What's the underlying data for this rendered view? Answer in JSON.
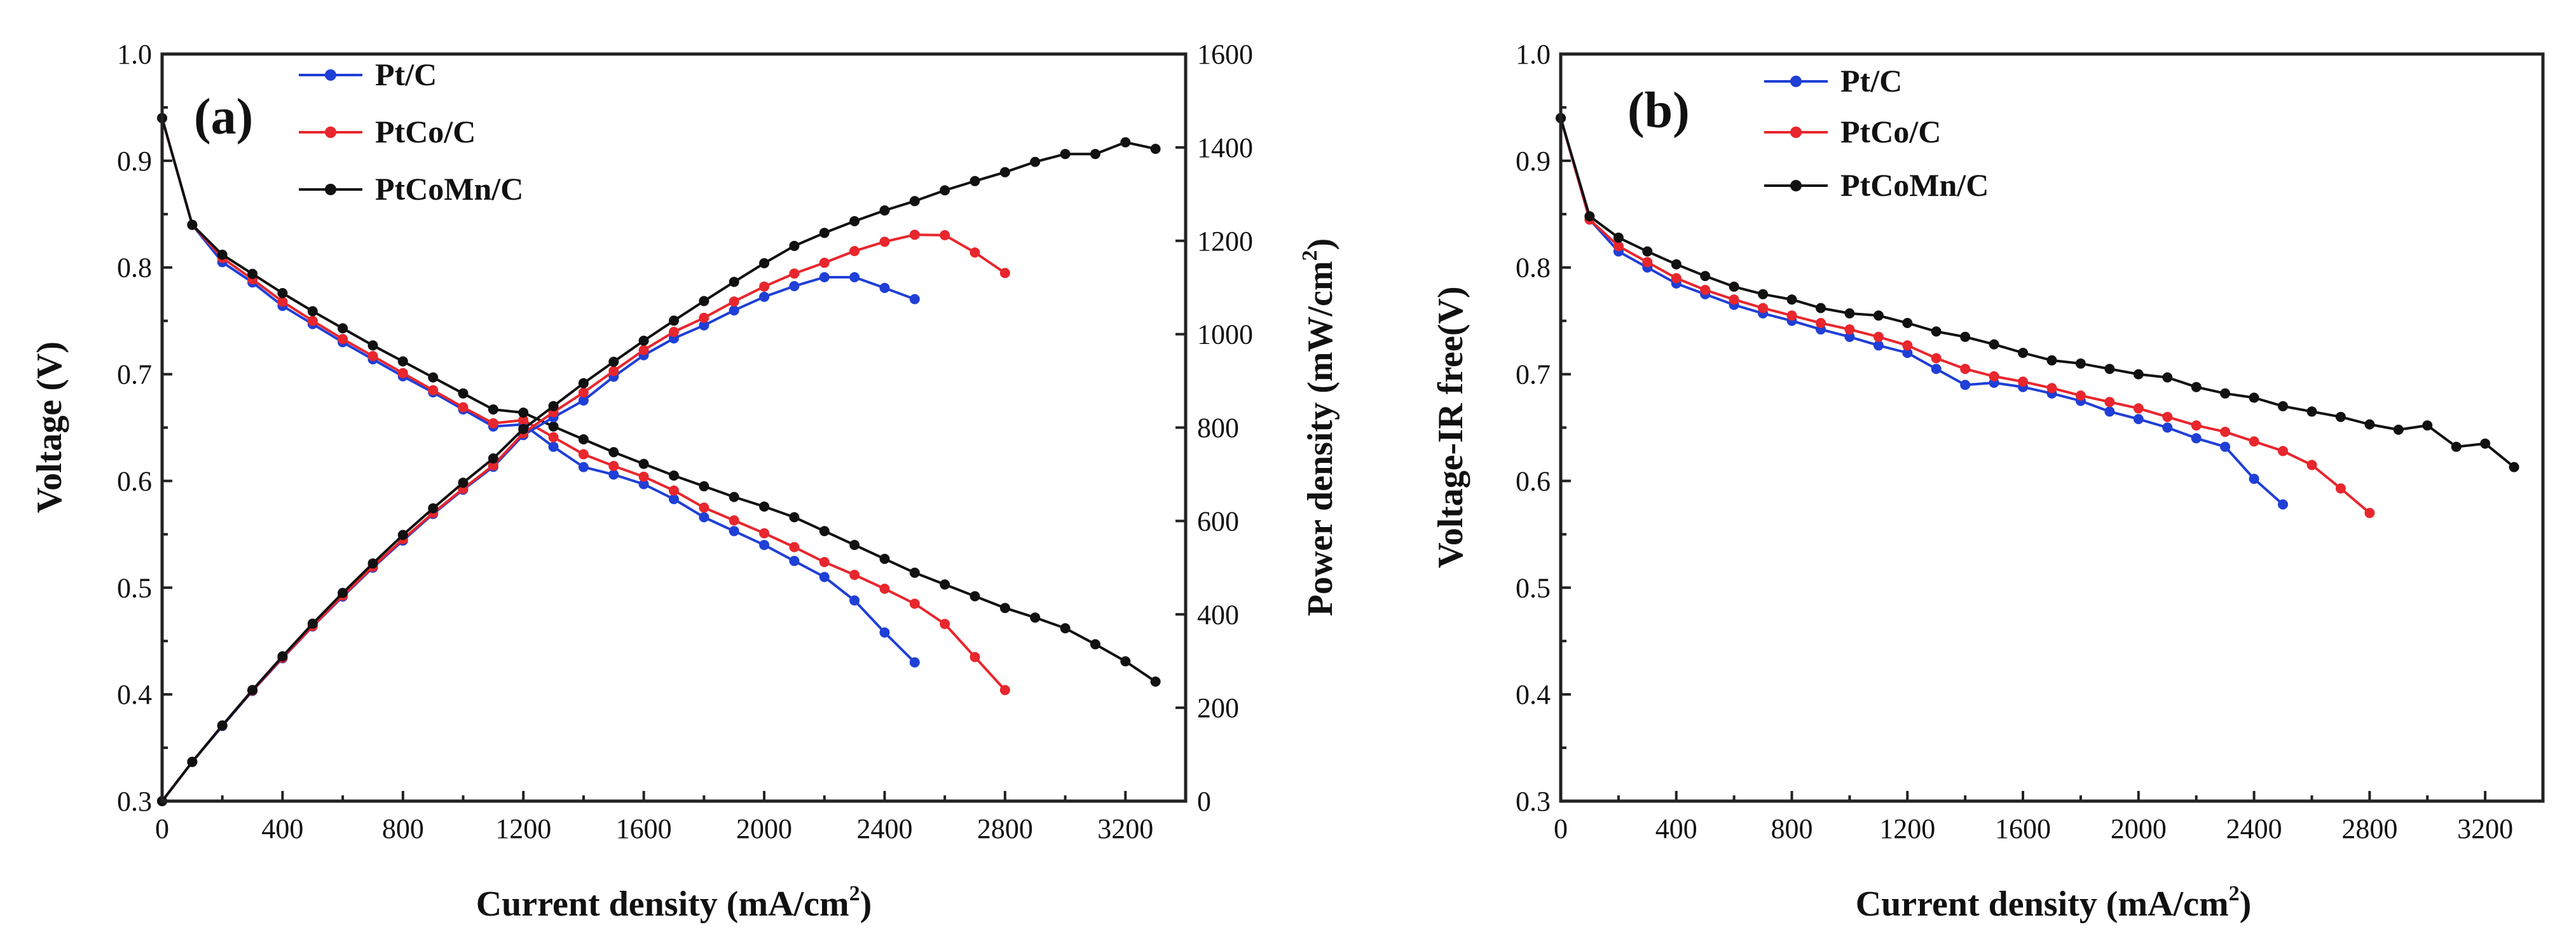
{
  "chart_data": [
    {
      "type": "line",
      "panel_label": "(a)",
      "xlabel": "Current density (mA/cm",
      "xlabel_sup": "2",
      "xlabel_end": ")",
      "ylabel": "Voltage (V)",
      "y2label": "Power density (mW/cm",
      "y2label_sup": "2",
      "y2label_end": ")",
      "xlim": [
        0,
        3400
      ],
      "ylim": [
        0.3,
        1.0
      ],
      "y2lim": [
        0,
        1600
      ],
      "xticks": [
        "0",
        "400",
        "800",
        "1200",
        "1600",
        "2000",
        "2400",
        "2800",
        "3200"
      ],
      "yticks": [
        "0.3",
        "0.4",
        "0.5",
        "0.6",
        "0.7",
        "0.8",
        "0.9",
        "1.0"
      ],
      "y2ticks": [
        "0",
        "200",
        "400",
        "600",
        "800",
        "1000",
        "1200",
        "1400",
        "1600"
      ],
      "legend_position": "top-left",
      "series": [
        {
          "name": "Pt/C",
          "color": "#1f3fd6",
          "axis": "left",
          "kind": "polarization",
          "x": [
            0,
            100,
            200,
            300,
            400,
            500,
            600,
            700,
            800,
            900,
            1000,
            1100,
            1200,
            1300,
            1400,
            1500,
            1600,
            1700,
            1800,
            1900,
            2000,
            2100,
            2200,
            2300,
            2400,
            2500
          ],
          "y": [
            0.94,
            0.84,
            0.805,
            0.786,
            0.764,
            0.747,
            0.73,
            0.714,
            0.698,
            0.683,
            0.667,
            0.651,
            0.653,
            0.632,
            0.613,
            0.606,
            0.597,
            0.583,
            0.566,
            0.553,
            0.54,
            0.525,
            0.51,
            0.488,
            0.458,
            0.43
          ]
        },
        {
          "name": "PtCo/C",
          "color": "#e8262d",
          "axis": "left",
          "kind": "polarization",
          "x": [
            0,
            100,
            200,
            300,
            400,
            500,
            600,
            700,
            800,
            900,
            1000,
            1100,
            1200,
            1300,
            1400,
            1500,
            1600,
            1700,
            1800,
            1900,
            2000,
            2100,
            2200,
            2300,
            2400,
            2500,
            2600,
            2700,
            2800
          ],
          "y": [
            0.94,
            0.84,
            0.809,
            0.789,
            0.768,
            0.75,
            0.733,
            0.717,
            0.701,
            0.685,
            0.669,
            0.654,
            0.657,
            0.641,
            0.625,
            0.614,
            0.604,
            0.591,
            0.575,
            0.563,
            0.551,
            0.538,
            0.524,
            0.512,
            0.499,
            0.485,
            0.466,
            0.435,
            0.404
          ]
        },
        {
          "name": "PtCoMn/C",
          "color": "#111111",
          "axis": "left",
          "kind": "polarization",
          "x": [
            0,
            100,
            200,
            300,
            400,
            500,
            600,
            700,
            800,
            900,
            1000,
            1100,
            1200,
            1300,
            1400,
            1500,
            1600,
            1700,
            1800,
            1900,
            2000,
            2100,
            2200,
            2300,
            2400,
            2500,
            2600,
            2700,
            2800,
            2900,
            3000,
            3100,
            3200,
            3300
          ],
          "y": [
            0.94,
            0.84,
            0.812,
            0.794,
            0.776,
            0.759,
            0.743,
            0.727,
            0.712,
            0.697,
            0.682,
            0.667,
            0.664,
            0.651,
            0.639,
            0.627,
            0.616,
            0.605,
            0.595,
            0.585,
            0.576,
            0.566,
            0.553,
            0.54,
            0.527,
            0.514,
            0.503,
            0.492,
            0.481,
            0.472,
            0.462,
            0.447,
            0.431,
            0.412
          ]
        },
        {
          "name": "Pt/C",
          "color": "#1f3fd6",
          "axis": "right",
          "kind": "power",
          "x": [
            0,
            100,
            200,
            300,
            400,
            500,
            600,
            700,
            800,
            900,
            1000,
            1100,
            1200,
            1300,
            1400,
            1500,
            1600,
            1700,
            1800,
            1900,
            2000,
            2100,
            2200,
            2300,
            2400,
            2500
          ],
          "y": [
            0,
            84,
            161,
            236,
            306,
            374,
            438,
            500,
            558,
            615,
            667,
            716,
            784,
            822,
            858,
            909,
            955,
            991,
            1019,
            1051,
            1080,
            1103,
            1122,
            1122,
            1099,
            1075
          ]
        },
        {
          "name": "PtCo/C",
          "color": "#e8262d",
          "axis": "right",
          "kind": "power",
          "x": [
            0,
            100,
            200,
            300,
            400,
            500,
            600,
            700,
            800,
            900,
            1000,
            1100,
            1200,
            1300,
            1400,
            1500,
            1600,
            1700,
            1800,
            1900,
            2000,
            2100,
            2200,
            2300,
            2400,
            2500,
            2600,
            2700,
            2800
          ],
          "y": [
            0,
            84,
            162,
            237,
            307,
            375,
            440,
            502,
            561,
            617,
            669,
            719,
            788,
            833,
            875,
            921,
            966,
            1005,
            1035,
            1070,
            1102,
            1130,
            1153,
            1178,
            1198,
            1213,
            1212,
            1175,
            1131
          ]
        },
        {
          "name": "PtCoMn/C",
          "color": "#111111",
          "axis": "right",
          "kind": "power",
          "x": [
            0,
            100,
            200,
            300,
            400,
            500,
            600,
            700,
            800,
            900,
            1000,
            1100,
            1200,
            1300,
            1400,
            1500,
            1600,
            1700,
            1800,
            1900,
            2000,
            2100,
            2200,
            2300,
            2400,
            2500,
            2600,
            2700,
            2800,
            2900,
            3000,
            3100,
            3200,
            3300
          ],
          "y": [
            0,
            84,
            162,
            238,
            310,
            380,
            446,
            509,
            570,
            627,
            682,
            734,
            797,
            846,
            895,
            941,
            986,
            1029,
            1071,
            1112,
            1152,
            1189,
            1217,
            1242,
            1265,
            1285,
            1308,
            1328,
            1347,
            1369,
            1386,
            1386,
            1411,
            1397
          ]
        }
      ]
    },
    {
      "type": "line",
      "panel_label": "(b)",
      "xlabel": "Current density (mA/cm",
      "xlabel_sup": "2",
      "xlabel_end": ")",
      "ylabel": "Voltage-IR free(V)",
      "xlim": [
        0,
        3400
      ],
      "ylim": [
        0.3,
        1.0
      ],
      "xticks": [
        "0",
        "400",
        "800",
        "1200",
        "1600",
        "2000",
        "2400",
        "2800",
        "3200"
      ],
      "yticks": [
        "0.3",
        "0.4",
        "0.5",
        "0.6",
        "0.7",
        "0.8",
        "0.9",
        "1.0"
      ],
      "legend_position": "top-left",
      "series": [
        {
          "name": "Pt/C",
          "color": "#1f3fd6",
          "axis": "left",
          "kind": "polarization",
          "x": [
            0,
            100,
            200,
            300,
            400,
            500,
            600,
            700,
            800,
            900,
            1000,
            1100,
            1200,
            1300,
            1400,
            1500,
            1600,
            1700,
            1800,
            1900,
            2000,
            2100,
            2200,
            2300,
            2400,
            2500
          ],
          "y": [
            0.94,
            0.845,
            0.815,
            0.8,
            0.785,
            0.775,
            0.765,
            0.757,
            0.75,
            0.742,
            0.735,
            0.727,
            0.72,
            0.705,
            0.69,
            0.692,
            0.688,
            0.682,
            0.675,
            0.665,
            0.658,
            0.65,
            0.64,
            0.632,
            0.602,
            0.578
          ]
        },
        {
          "name": "PtCo/C",
          "color": "#e8262d",
          "axis": "left",
          "kind": "polarization",
          "x": [
            0,
            100,
            200,
            300,
            400,
            500,
            600,
            700,
            800,
            900,
            1000,
            1100,
            1200,
            1300,
            1400,
            1500,
            1600,
            1700,
            1800,
            1900,
            2000,
            2100,
            2200,
            2300,
            2400,
            2500,
            2600,
            2700,
            2800
          ],
          "y": [
            0.94,
            0.845,
            0.82,
            0.805,
            0.79,
            0.779,
            0.77,
            0.762,
            0.755,
            0.748,
            0.742,
            0.735,
            0.727,
            0.715,
            0.705,
            0.698,
            0.693,
            0.687,
            0.68,
            0.674,
            0.668,
            0.66,
            0.652,
            0.646,
            0.637,
            0.628,
            0.615,
            0.593,
            0.57
          ]
        },
        {
          "name": "PtCoMn/C",
          "color": "#111111",
          "axis": "left",
          "kind": "polarization",
          "x": [
            0,
            100,
            200,
            300,
            400,
            500,
            600,
            700,
            800,
            900,
            1000,
            1100,
            1200,
            1300,
            1400,
            1500,
            1600,
            1700,
            1800,
            1900,
            2000,
            2100,
            2200,
            2300,
            2400,
            2500,
            2600,
            2700,
            2800,
            2900,
            3000,
            3100,
            3200,
            3300
          ],
          "y": [
            0.94,
            0.848,
            0.828,
            0.815,
            0.803,
            0.792,
            0.782,
            0.775,
            0.77,
            0.762,
            0.757,
            0.755,
            0.748,
            0.74,
            0.735,
            0.728,
            0.72,
            0.713,
            0.71,
            0.705,
            0.7,
            0.697,
            0.688,
            0.682,
            0.678,
            0.67,
            0.665,
            0.66,
            0.653,
            0.648,
            0.652,
            0.632,
            0.635,
            0.613
          ]
        }
      ]
    }
  ]
}
